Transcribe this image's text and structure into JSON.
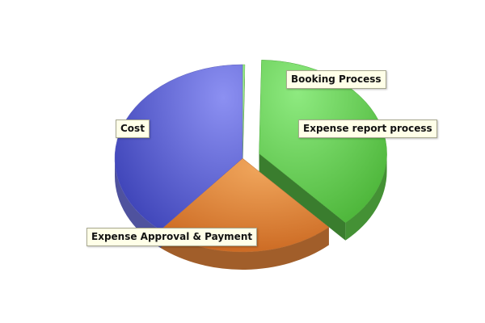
{
  "chart_data": {
    "type": "pie",
    "style": "3d-exploded",
    "legend": "none",
    "slices": [
      {
        "label": "Booking Process",
        "value": 0.3,
        "color": "#8fe07a"
      },
      {
        "label": "Expense report process",
        "value": 38,
        "color": "#5ec94a"
      },
      {
        "label": "Expense Approval & Payment",
        "value": 23,
        "color": "#e0823a"
      },
      {
        "label": "Cost",
        "value": 39,
        "color": "#6e72dc"
      }
    ]
  }
}
